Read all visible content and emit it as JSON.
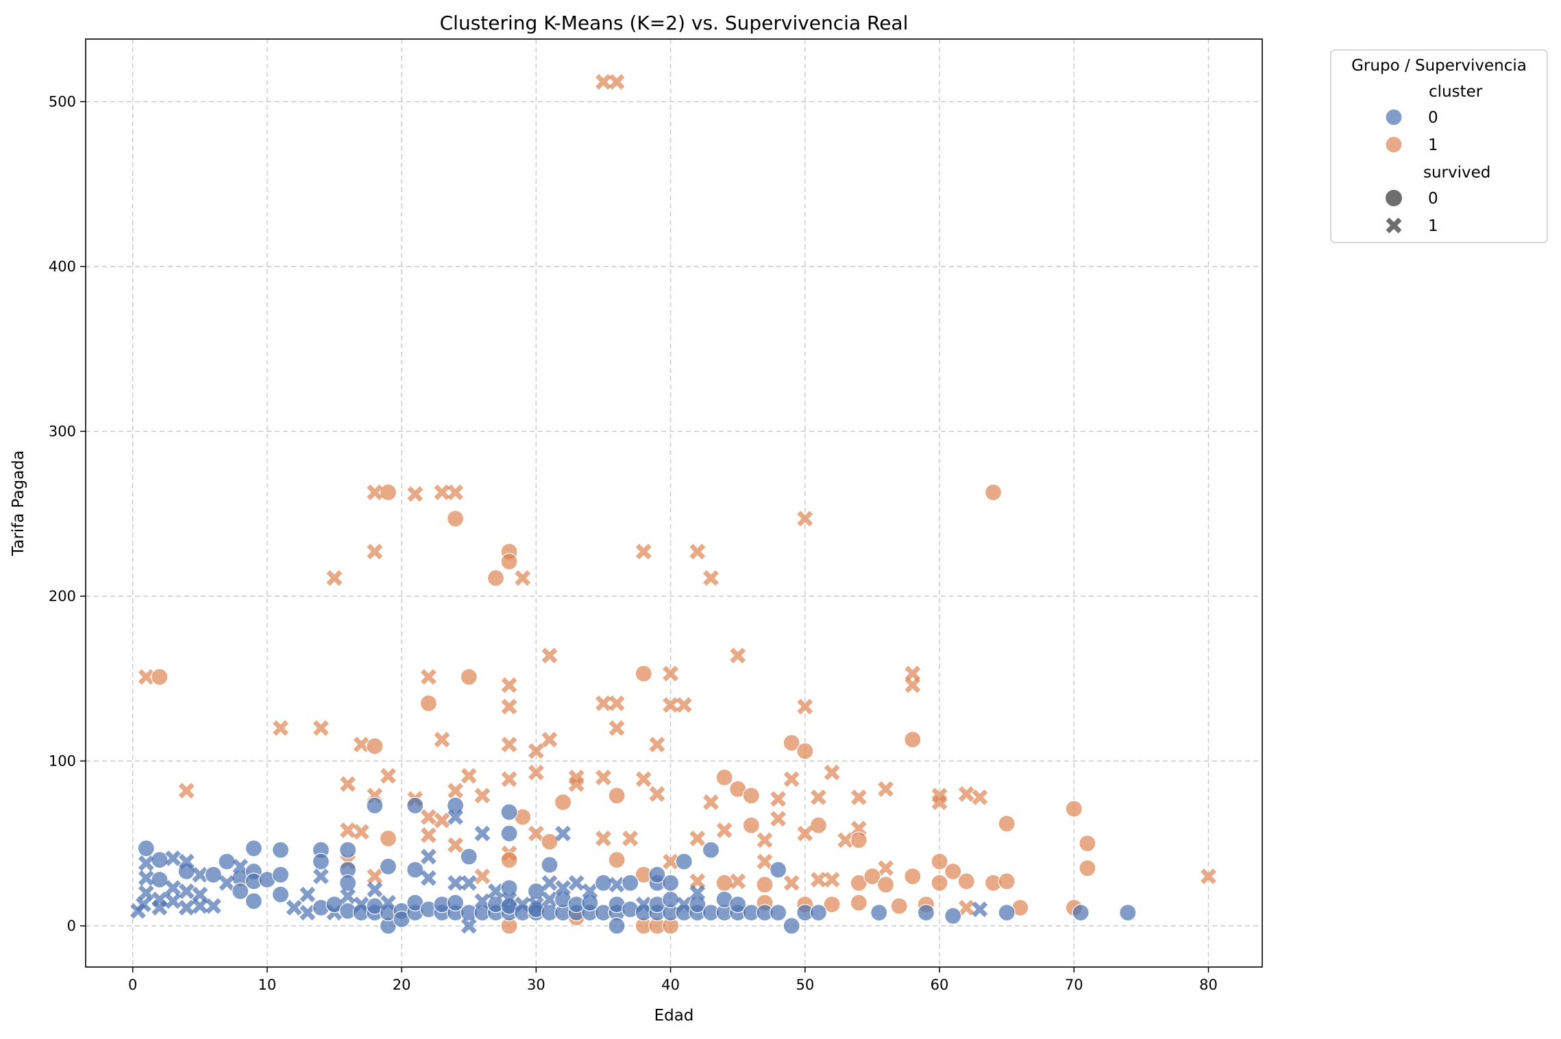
{
  "chart_data": {
    "type": "scatter",
    "title": "Clustering K-Means (K=2) vs. Supervivencia Real",
    "xlabel": "Edad",
    "ylabel": "Tarifa Pagada",
    "xlim": [
      -3.5,
      84
    ],
    "ylim": [
      -25,
      538
    ],
    "xticks": [
      "0",
      "10",
      "20",
      "30",
      "40",
      "50",
      "60",
      "70",
      "80"
    ],
    "yticks": [
      "0",
      "100",
      "200",
      "300",
      "400",
      "500"
    ],
    "grid": true,
    "legend": {
      "title": "Grupo / Supervivencia",
      "placement": "outside-top-right",
      "hue_title": "cluster",
      "hue_items": [
        {
          "label": "0",
          "color": "#4c72b0"
        },
        {
          "label": "1",
          "color": "#dd8452"
        }
      ],
      "style_title": "survived",
      "style_items": [
        {
          "label": "0",
          "marker": "circle"
        },
        {
          "label": "1",
          "marker": "x"
        }
      ]
    },
    "colors": {
      "cluster_0": "#4c72b0",
      "cluster_1": "#dd8452"
    },
    "points": [
      [
        35,
        512,
        1,
        1
      ],
      [
        36,
        512,
        1,
        1
      ],
      [
        19,
        263,
        1,
        0
      ],
      [
        18,
        263,
        1,
        1
      ],
      [
        21,
        262,
        1,
        1
      ],
      [
        23,
        263,
        1,
        1
      ],
      [
        24,
        263,
        1,
        1
      ],
      [
        64,
        263,
        1,
        0
      ],
      [
        24,
        247,
        1,
        0
      ],
      [
        50,
        247,
        1,
        1
      ],
      [
        28,
        227,
        1,
        0
      ],
      [
        28,
        221,
        1,
        0
      ],
      [
        18,
        227,
        1,
        1
      ],
      [
        38,
        227,
        1,
        1
      ],
      [
        42,
        227,
        1,
        1
      ],
      [
        15,
        211,
        1,
        1
      ],
      [
        27,
        211,
        1,
        0
      ],
      [
        29,
        211,
        1,
        1
      ],
      [
        43,
        211,
        1,
        1
      ],
      [
        31,
        164,
        1,
        1
      ],
      [
        45,
        164,
        1,
        1
      ],
      [
        38,
        153,
        1,
        0
      ],
      [
        40,
        153,
        1,
        1
      ],
      [
        58,
        153,
        1,
        1
      ],
      [
        58,
        146,
        1,
        1
      ],
      [
        28,
        146,
        1,
        1
      ],
      [
        1,
        151,
        1,
        1
      ],
      [
        2,
        151,
        1,
        0
      ],
      [
        22,
        151,
        1,
        1
      ],
      [
        25,
        151,
        1,
        0
      ],
      [
        22,
        135,
        1,
        0
      ],
      [
        35,
        135,
        1,
        1
      ],
      [
        36,
        135,
        1,
        1
      ],
      [
        40,
        134,
        1,
        1
      ],
      [
        41,
        134,
        1,
        1
      ],
      [
        28,
        133,
        1,
        1
      ],
      [
        50,
        133,
        1,
        1
      ],
      [
        11,
        120,
        1,
        1
      ],
      [
        14,
        120,
        1,
        1
      ],
      [
        36,
        120,
        1,
        1
      ],
      [
        23,
        113,
        1,
        1
      ],
      [
        31,
        113,
        1,
        1
      ],
      [
        58,
        113,
        1,
        0
      ],
      [
        17,
        110,
        1,
        1
      ],
      [
        18,
        109,
        1,
        0
      ],
      [
        28,
        110,
        1,
        1
      ],
      [
        39,
        110,
        1,
        1
      ],
      [
        49,
        111,
        1,
        0
      ],
      [
        30,
        106,
        1,
        1
      ],
      [
        50,
        106,
        1,
        0
      ],
      [
        52,
        93,
        1,
        1
      ],
      [
        30,
        93,
        1,
        1
      ],
      [
        19,
        91,
        1,
        1
      ],
      [
        25,
        91,
        1,
        1
      ],
      [
        33,
        90,
        1,
        1
      ],
      [
        35,
        90,
        1,
        1
      ],
      [
        44,
        90,
        1,
        0
      ],
      [
        16,
        86,
        1,
        1
      ],
      [
        28,
        89,
        1,
        1
      ],
      [
        38,
        89,
        1,
        1
      ],
      [
        49,
        89,
        1,
        1
      ],
      [
        4,
        82,
        1,
        1
      ],
      [
        24,
        82,
        1,
        1
      ],
      [
        45,
        83,
        1,
        0
      ],
      [
        56,
        83,
        1,
        1
      ],
      [
        62,
        80,
        1,
        1
      ],
      [
        60,
        79,
        1,
        1
      ],
      [
        63,
        78,
        1,
        1
      ],
      [
        18,
        79,
        1,
        1
      ],
      [
        21,
        77,
        1,
        1
      ],
      [
        26,
        79,
        1,
        1
      ],
      [
        36,
        79,
        1,
        0
      ],
      [
        39,
        80,
        1,
        1
      ],
      [
        46,
        79,
        1,
        0
      ],
      [
        48,
        77,
        1,
        1
      ],
      [
        51,
        78,
        1,
        1
      ],
      [
        54,
        78,
        1,
        1
      ],
      [
        60,
        75,
        1,
        1
      ],
      [
        32,
        75,
        1,
        0
      ],
      [
        33,
        86,
        1,
        1
      ],
      [
        43,
        75,
        1,
        1
      ],
      [
        70,
        71,
        1,
        0
      ],
      [
        22,
        66,
        1,
        1
      ],
      [
        23,
        64,
        1,
        1
      ],
      [
        29,
        66,
        1,
        0
      ],
      [
        46,
        61,
        1,
        0
      ],
      [
        48,
        65,
        1,
        1
      ],
      [
        51,
        61,
        1,
        0
      ],
      [
        65,
        62,
        1,
        0
      ],
      [
        16,
        58,
        1,
        1
      ],
      [
        17,
        57,
        1,
        1
      ],
      [
        44,
        58,
        1,
        1
      ],
      [
        50,
        56,
        1,
        1
      ],
      [
        54,
        59,
        1,
        1
      ],
      [
        22,
        55,
        1,
        1
      ],
      [
        19,
        53,
        1,
        0
      ],
      [
        30,
        56,
        1,
        1
      ],
      [
        35,
        53,
        1,
        1
      ],
      [
        42,
        53,
        1,
        1
      ],
      [
        47,
        52,
        1,
        1
      ],
      [
        53,
        52,
        1,
        1
      ],
      [
        37,
        53,
        1,
        1
      ],
      [
        31,
        51,
        1,
        0
      ],
      [
        71,
        50,
        1,
        0
      ],
      [
        24,
        49,
        1,
        1
      ],
      [
        54,
        52,
        1,
        0
      ],
      [
        28,
        44,
        1,
        1
      ],
      [
        28,
        40,
        1,
        0
      ],
      [
        36,
        40,
        1,
        0
      ],
      [
        40,
        39,
        1,
        1
      ],
      [
        47,
        39,
        1,
        1
      ],
      [
        56,
        35,
        1,
        1
      ],
      [
        60,
        39,
        1,
        0
      ],
      [
        16,
        39,
        1,
        1
      ],
      [
        61,
        33,
        1,
        0
      ],
      [
        71,
        35,
        1,
        0
      ],
      [
        18,
        30,
        1,
        1
      ],
      [
        26,
        30,
        1,
        1
      ],
      [
        38,
        31,
        1,
        0
      ],
      [
        42,
        27,
        1,
        1
      ],
      [
        44,
        26,
        1,
        0
      ],
      [
        45,
        27,
        1,
        1
      ],
      [
        49,
        26,
        1,
        1
      ],
      [
        51,
        28,
        1,
        1
      ],
      [
        54,
        26,
        1,
        0
      ],
      [
        55,
        30,
        1,
        0
      ],
      [
        58,
        30,
        1,
        0
      ],
      [
        60,
        26,
        1,
        0
      ],
      [
        62,
        27,
        1,
        0
      ],
      [
        64,
        26,
        1,
        0
      ],
      [
        65,
        27,
        1,
        0
      ],
      [
        80,
        30,
        1,
        1
      ],
      [
        47,
        25,
        1,
        0
      ],
      [
        52,
        28,
        1,
        1
      ],
      [
        56,
        25,
        1,
        0
      ],
      [
        57,
        12,
        1,
        0
      ],
      [
        59,
        13,
        1,
        0
      ],
      [
        66,
        11,
        1,
        0
      ],
      [
        70,
        11,
        1,
        0
      ],
      [
        62,
        11,
        1,
        1
      ],
      [
        50,
        13,
        1,
        0
      ],
      [
        52,
        13,
        1,
        0
      ],
      [
        54,
        14,
        1,
        0
      ],
      [
        47,
        14,
        1,
        0
      ],
      [
        33,
        5,
        1,
        0
      ],
      [
        28,
        0,
        1,
        0
      ],
      [
        38,
        0,
        1,
        0
      ],
      [
        39,
        0,
        1,
        0
      ],
      [
        40,
        0,
        1,
        0
      ],
      [
        1,
        47,
        0,
        0
      ],
      [
        2,
        40,
        0,
        0
      ],
      [
        2,
        28,
        0,
        0
      ],
      [
        3,
        41,
        0,
        1
      ],
      [
        4,
        33,
        0,
        0
      ],
      [
        4,
        39,
        0,
        1
      ],
      [
        5,
        31,
        0,
        1
      ],
      [
        6,
        31,
        0,
        0
      ],
      [
        7,
        39,
        0,
        0
      ],
      [
        8,
        29,
        0,
        0
      ],
      [
        8,
        36,
        0,
        1
      ],
      [
        9,
        47,
        0,
        0
      ],
      [
        9,
        33,
        0,
        0
      ],
      [
        9,
        27,
        0,
        0
      ],
      [
        9,
        15,
        0,
        0
      ],
      [
        10,
        28,
        0,
        0
      ],
      [
        11,
        46,
        0,
        0
      ],
      [
        11,
        31,
        0,
        0
      ],
      [
        11,
        19,
        0,
        0
      ],
      [
        14,
        46,
        0,
        0
      ],
      [
        14,
        39,
        0,
        0
      ],
      [
        14,
        30,
        0,
        1
      ],
      [
        16,
        46,
        0,
        0
      ],
      [
        16,
        34,
        0,
        0
      ],
      [
        16,
        26,
        0,
        0
      ],
      [
        18,
        73,
        0,
        0
      ],
      [
        21,
        73,
        0,
        0
      ],
      [
        24,
        73,
        0,
        0
      ],
      [
        24,
        66,
        0,
        1
      ],
      [
        28,
        69,
        0,
        0
      ],
      [
        28,
        56,
        0,
        0
      ],
      [
        32,
        56,
        0,
        1
      ],
      [
        26,
        56,
        0,
        1
      ],
      [
        25,
        42,
        0,
        0
      ],
      [
        22,
        42,
        0,
        1
      ],
      [
        31,
        37,
        0,
        0
      ],
      [
        41,
        39,
        0,
        0
      ],
      [
        43,
        46,
        0,
        0
      ],
      [
        48,
        34,
        0,
        0
      ],
      [
        21,
        34,
        0,
        0
      ],
      [
        19,
        36,
        0,
        0
      ],
      [
        22,
        29,
        0,
        1
      ],
      [
        0.4,
        9,
        0,
        1
      ],
      [
        0.8,
        13,
        0,
        1
      ],
      [
        1,
        20,
        0,
        1
      ],
      [
        1,
        29,
        0,
        1
      ],
      [
        1,
        38,
        0,
        1
      ],
      [
        2,
        11,
        0,
        1
      ],
      [
        2,
        16,
        0,
        1
      ],
      [
        3,
        23,
        0,
        1
      ],
      [
        3,
        15,
        0,
        1
      ],
      [
        4,
        11,
        0,
        1
      ],
      [
        4,
        21,
        0,
        1
      ],
      [
        5,
        19,
        0,
        1
      ],
      [
        5,
        12,
        0,
        1
      ],
      [
        6,
        12,
        0,
        1
      ],
      [
        7,
        26,
        0,
        1
      ],
      [
        8,
        21,
        0,
        0
      ],
      [
        12,
        11,
        0,
        1
      ],
      [
        13,
        8,
        0,
        1
      ],
      [
        13,
        19,
        0,
        1
      ],
      [
        14,
        11,
        0,
        0
      ],
      [
        15,
        8,
        0,
        1
      ],
      [
        15,
        13,
        0,
        0
      ],
      [
        16,
        9,
        0,
        0
      ],
      [
        16,
        18,
        0,
        1
      ],
      [
        17,
        8,
        0,
        0
      ],
      [
        17,
        13,
        0,
        1
      ],
      [
        18,
        8,
        0,
        0
      ],
      [
        18,
        12,
        0,
        0
      ],
      [
        18,
        22,
        0,
        1
      ],
      [
        19,
        0,
        0,
        0
      ],
      [
        19,
        8,
        0,
        0
      ],
      [
        19,
        14,
        0,
        1
      ],
      [
        20,
        9,
        0,
        0
      ],
      [
        20,
        4,
        0,
        0
      ],
      [
        21,
        8,
        0,
        0
      ],
      [
        21,
        14,
        0,
        0
      ],
      [
        22,
        10,
        0,
        0
      ],
      [
        23,
        8,
        0,
        0
      ],
      [
        23,
        13,
        0,
        0
      ],
      [
        24,
        8,
        0,
        0
      ],
      [
        24,
        14,
        0,
        0
      ],
      [
        24,
        26,
        0,
        1
      ],
      [
        25,
        8,
        0,
        0
      ],
      [
        25,
        0,
        0,
        1
      ],
      [
        25,
        26,
        0,
        1
      ],
      [
        26,
        8,
        0,
        0
      ],
      [
        26,
        15,
        0,
        1
      ],
      [
        27,
        8,
        0,
        0
      ],
      [
        27,
        13,
        0,
        0
      ],
      [
        27,
        21,
        0,
        1
      ],
      [
        28,
        8,
        0,
        0
      ],
      [
        28,
        12,
        0,
        0
      ],
      [
        28,
        23,
        0,
        0
      ],
      [
        28,
        16,
        0,
        1
      ],
      [
        29,
        8,
        0,
        0
      ],
      [
        29,
        13,
        0,
        1
      ],
      [
        30,
        8,
        0,
        0
      ],
      [
        30,
        10,
        0,
        0
      ],
      [
        30,
        21,
        0,
        0
      ],
      [
        30,
        13,
        0,
        1
      ],
      [
        31,
        8,
        0,
        0
      ],
      [
        31,
        16,
        0,
        1
      ],
      [
        31,
        26,
        0,
        1
      ],
      [
        32,
        8,
        0,
        0
      ],
      [
        32,
        16,
        0,
        0
      ],
      [
        32,
        23,
        0,
        1
      ],
      [
        33,
        8,
        0,
        0
      ],
      [
        33,
        13,
        0,
        0
      ],
      [
        33,
        26,
        0,
        1
      ],
      [
        34,
        8,
        0,
        0
      ],
      [
        34,
        14,
        0,
        0
      ],
      [
        34,
        21,
        0,
        1
      ],
      [
        35,
        8,
        0,
        0
      ],
      [
        35,
        26,
        0,
        0
      ],
      [
        36,
        8,
        0,
        0
      ],
      [
        36,
        13,
        0,
        0
      ],
      [
        36,
        0,
        0,
        0
      ],
      [
        36,
        25,
        0,
        1
      ],
      [
        37,
        10,
        0,
        0
      ],
      [
        37,
        26,
        0,
        0
      ],
      [
        38,
        8,
        0,
        0
      ],
      [
        38,
        13,
        0,
        1
      ],
      [
        39,
        8,
        0,
        0
      ],
      [
        39,
        13,
        0,
        0
      ],
      [
        39,
        26,
        0,
        0
      ],
      [
        39,
        31,
        0,
        0
      ],
      [
        40,
        8,
        0,
        0
      ],
      [
        40,
        16,
        0,
        0
      ],
      [
        40,
        26,
        0,
        0
      ],
      [
        41,
        8,
        0,
        0
      ],
      [
        41,
        13,
        0,
        1
      ],
      [
        42,
        8,
        0,
        0
      ],
      [
        42,
        13,
        0,
        0
      ],
      [
        42,
        20,
        0,
        1
      ],
      [
        43,
        8,
        0,
        0
      ],
      [
        44,
        8,
        0,
        0
      ],
      [
        44,
        16,
        0,
        0
      ],
      [
        45,
        8,
        0,
        0
      ],
      [
        45,
        13,
        0,
        0
      ],
      [
        46,
        8,
        0,
        0
      ],
      [
        47,
        8,
        0,
        0
      ],
      [
        48,
        8,
        0,
        0
      ],
      [
        49,
        0,
        0,
        0
      ],
      [
        50,
        8,
        0,
        0
      ],
      [
        51,
        8,
        0,
        0
      ],
      [
        55.5,
        8,
        0,
        0
      ],
      [
        59,
        8,
        0,
        0
      ],
      [
        61,
        6,
        0,
        0
      ],
      [
        63,
        10,
        0,
        1
      ],
      [
        65,
        8,
        0,
        0
      ],
      [
        70.5,
        8,
        0,
        0
      ],
      [
        74,
        8,
        0,
        0
      ]
    ]
  }
}
